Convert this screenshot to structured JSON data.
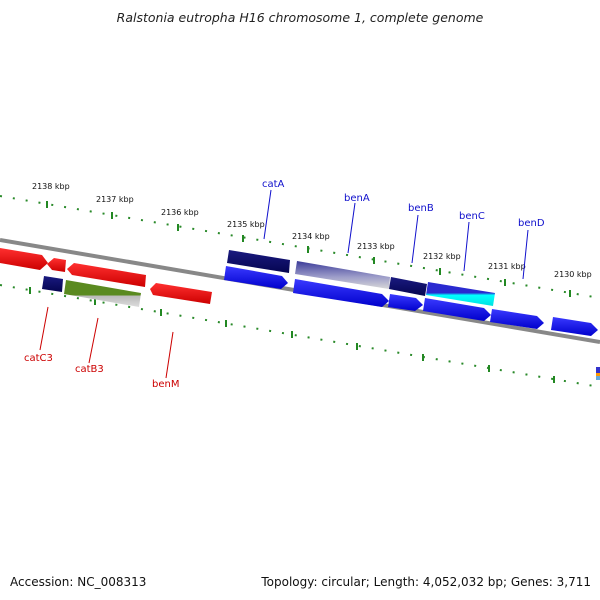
{
  "header": {
    "title": "Ralstonia eutropha H16 chromosome 1, complete genome"
  },
  "footer": {
    "accession": "Accession: NC_008313",
    "summary": "Topology: circular; Length: 4,052,032 bp; Genes: 3,711"
  },
  "map": {
    "ticks": [
      "2138 kbp",
      "2137 kbp",
      "2136 kbp",
      "2135 kbp",
      "2134 kbp",
      "2133 kbp",
      "2132 kbp",
      "2131 kbp",
      "2130 kbp"
    ],
    "genes_top": [
      "catA",
      "benA",
      "benB",
      "benC",
      "benD"
    ],
    "genes_bottom": [
      "catC3",
      "catB3",
      "benM"
    ],
    "colors": {
      "forward_gene": "#0000ee",
      "reverse_gene": "#ee0000",
      "dark_feature": "#0a0a6e",
      "label_blue": "#1010cc",
      "label_red": "#cc0000",
      "tick": "#228822",
      "backbone": "#777777"
    }
  }
}
